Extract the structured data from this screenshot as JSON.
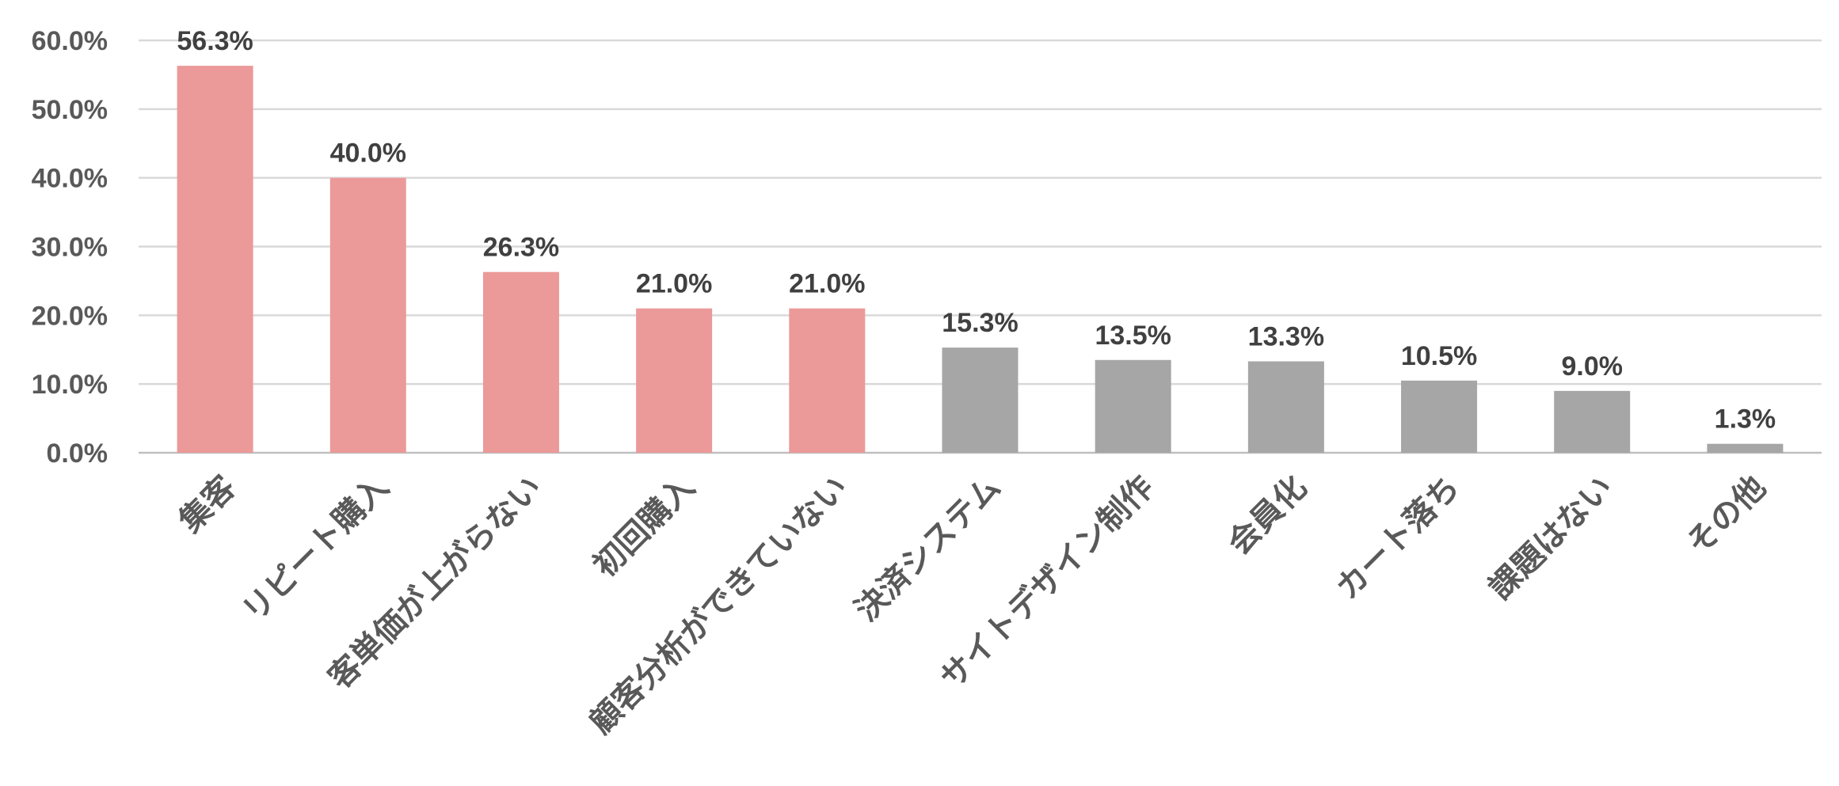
{
  "chart_data": {
    "type": "bar",
    "title": "",
    "xlabel": "",
    "ylabel": "",
    "ylim": [
      0,
      60
    ],
    "y_ticks": [
      "0.0%",
      "10.0%",
      "20.0%",
      "30.0%",
      "40.0%",
      "50.0%",
      "60.0%"
    ],
    "grid": true,
    "categories": [
      "集客",
      "リピート購入",
      "客単価が上がらない",
      "初回購入",
      "顧客分析ができていない",
      "決済システム",
      "サイトデザイン制作",
      "会員化",
      "カート落ち",
      "課題はない",
      "その他"
    ],
    "values": [
      56.3,
      40.0,
      26.3,
      21.0,
      21.0,
      15.3,
      13.5,
      13.3,
      10.5,
      9.0,
      1.3
    ],
    "data_labels": [
      "56.3%",
      "40.0%",
      "26.3%",
      "21.0%",
      "21.0%",
      "15.3%",
      "13.5%",
      "13.3%",
      "10.5%",
      "9.0%",
      "1.3%"
    ],
    "colors": {
      "highlight": "#ec9999",
      "default": "#a6a6a6"
    },
    "highlighted_count": 5
  }
}
